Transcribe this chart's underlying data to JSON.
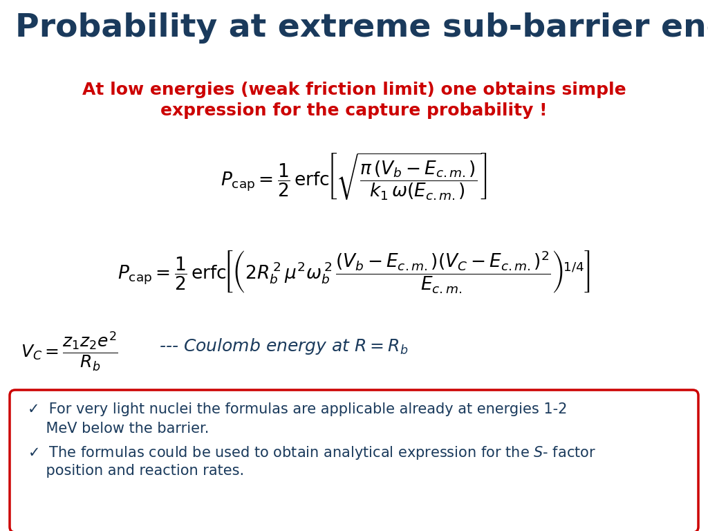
{
  "title": "Probability at extreme sub-barrier energies",
  "title_color": "#1a3a5c",
  "subtitle_line1": "At low energies (weak friction limit) one obtains simple",
  "subtitle_line2": "expression for the capture probability !",
  "subtitle_color": "#cc0000",
  "formula1": "$P_{\\mathrm{cap}} = \\dfrac{1}{2}\\,\\mathrm{erfc}\\!\\left[\\sqrt{\\dfrac{\\pi\\,(V_b - E_{c.m.})}{k_1\\,\\omega(E_{c.m.})}}\\right]$",
  "formula2": "$P_{\\mathrm{cap}} = \\dfrac{1}{2}\\,\\mathrm{erfc}\\!\\left[\\left(2R_b^{\\,2}\\,\\mu^2\\omega_b^{\\,2}\\,\\dfrac{(V_b - E_{c.m.})(V_C - E_{c.m.})^2}{E_{c.m.}}\\right)^{\\!1/4}\\right]$",
  "formula3_left": "$V_C = \\dfrac{z_1 z_2 e^2}{R_b}$",
  "formula3_right": "--- Coulomb energy at $R=R_b$",
  "bullet1_line1": "✓  For very light nuclei the formulas are applicable already at energies 1-2",
  "bullet1_line2": "    MeV below the barrier.",
  "bullet2_line1": "✓  The formulas could be used to obtain analytical expression for the $S$- factor",
  "bullet2_line2": "    position and reaction rates.",
  "box_color": "#cc0000",
  "text_color": "#1a3a5c",
  "background_color": "#ffffff",
  "title_fontsize": 34,
  "subtitle_fontsize": 18,
  "formula_fontsize": 19,
  "formula3_fontsize": 18,
  "bullet_fontsize": 15
}
